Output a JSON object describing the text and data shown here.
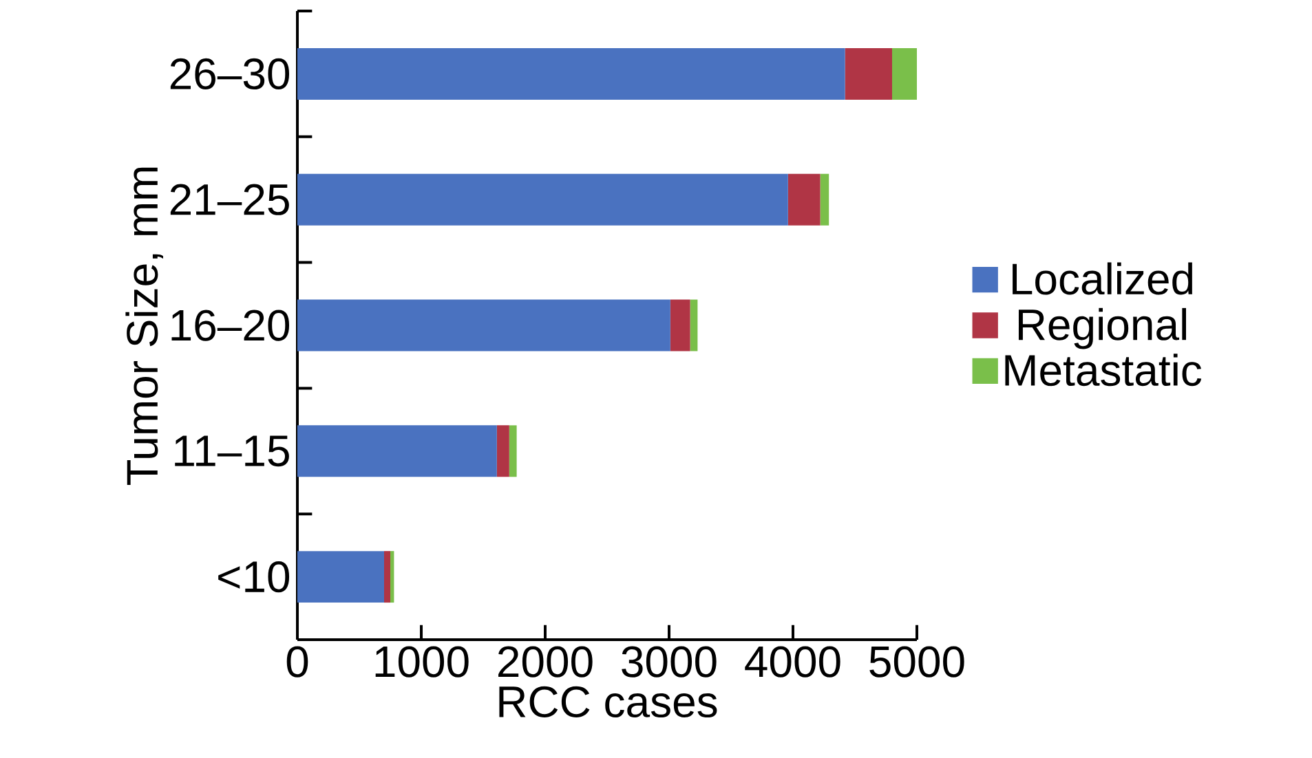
{
  "chart_data": {
    "type": "bar",
    "orientation": "horizontal",
    "stacked": true,
    "xlabel": "RCC cases",
    "ylabel": "Tumor Size, mm",
    "categories": [
      "26–30",
      "21–25",
      "16–20",
      "11–15",
      "<10"
    ],
    "series": [
      {
        "name": "Localized",
        "color": "#4a72c0",
        "values": [
          4420,
          3960,
          3010,
          1610,
          700
        ]
      },
      {
        "name": "Regional",
        "color": "#b03545",
        "values": [
          380,
          260,
          160,
          100,
          50
        ]
      },
      {
        "name": "Metastatic",
        "color": "#7abf4a",
        "values": [
          200,
          70,
          60,
          60,
          30
        ]
      }
    ],
    "xlim": [
      0,
      5000
    ],
    "xticks": [
      0,
      1000,
      2000,
      3000,
      4000,
      5000
    ],
    "legend": "right"
  }
}
